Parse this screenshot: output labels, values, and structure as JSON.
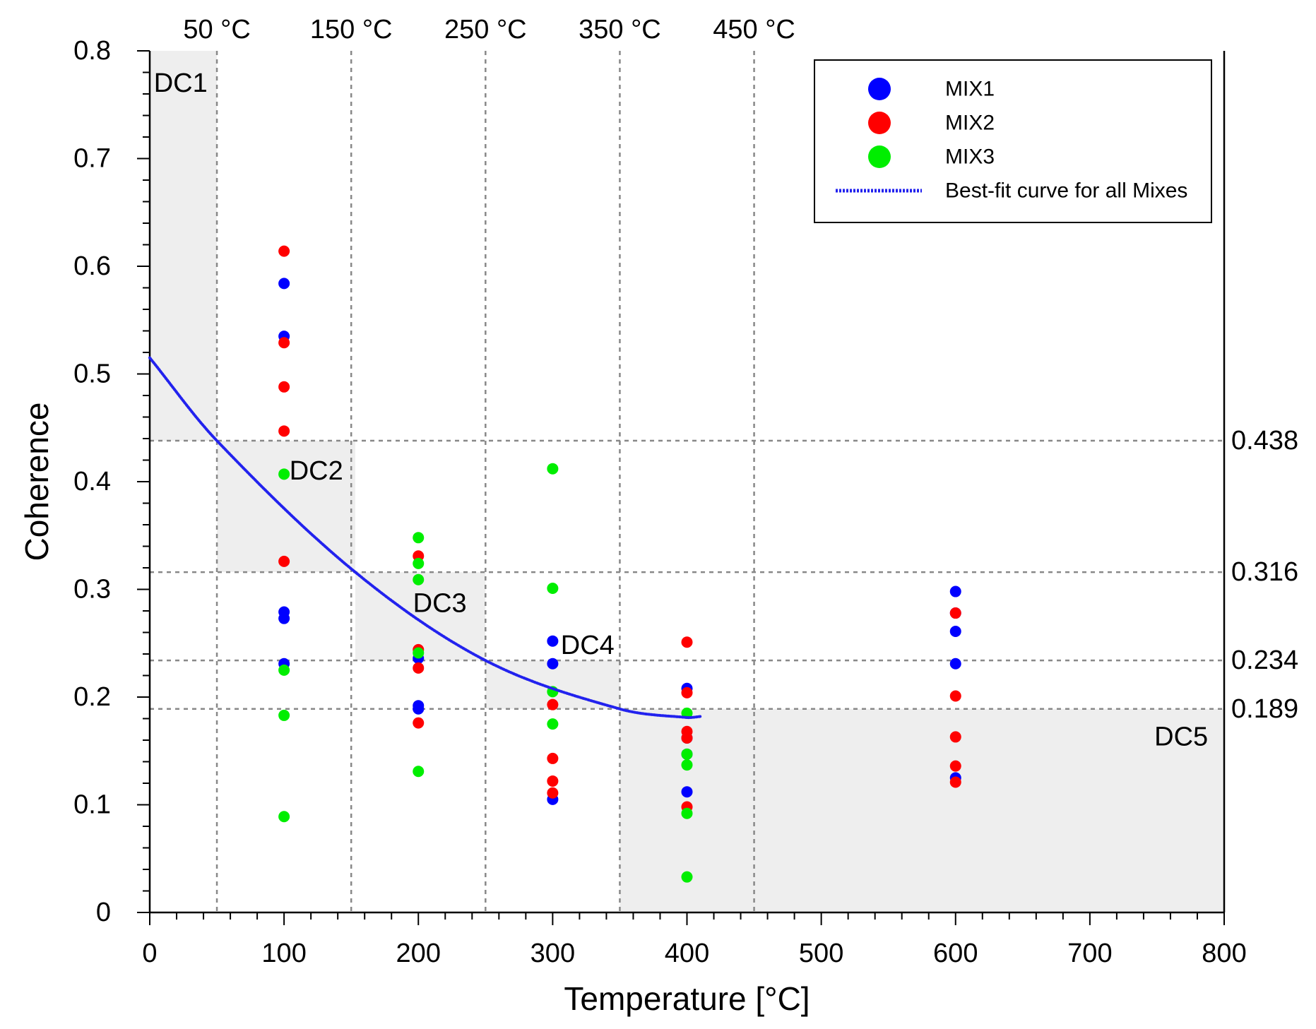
{
  "chart_data": {
    "type": "scatter",
    "xlabel": "Temperature [°C]",
    "ylabel": "Coherence",
    "xlim": [
      0,
      800
    ],
    "ylim": [
      0,
      0.8
    ],
    "x_ticks": [
      0,
      100,
      200,
      300,
      400,
      500,
      600,
      700,
      800
    ],
    "y_ticks": [
      0,
      0.1,
      0.2,
      0.3,
      0.4,
      0.5,
      0.6,
      0.7,
      0.8
    ],
    "x_tick_labels": [
      "0",
      "100",
      "200",
      "300",
      "400",
      "500",
      "600",
      "700",
      "800"
    ],
    "y_tick_labels": [
      "0",
      "0.1",
      "0.2",
      "0.3",
      "0.4",
      "0.5",
      "0.6",
      "0.7",
      "0.8"
    ],
    "top_temperatures": [
      {
        "value": 50,
        "label": "50 °C"
      },
      {
        "value": 150,
        "label": "150 °C"
      },
      {
        "value": 250,
        "label": "250 °C"
      },
      {
        "value": 350,
        "label": "350 °C"
      },
      {
        "value": 450,
        "label": "450 °C"
      }
    ],
    "thresholds": [
      {
        "value": 0.438,
        "label": "0.438"
      },
      {
        "value": 0.316,
        "label": "0.316"
      },
      {
        "value": 0.234,
        "label": "0.234"
      },
      {
        "value": 0.189,
        "label": "0.189"
      }
    ],
    "regions": [
      {
        "name": "DC1",
        "x": [
          0,
          50
        ],
        "y": [
          0.438,
          0.8
        ],
        "label_at": [
          3,
          0.77
        ]
      },
      {
        "name": "DC2",
        "x": [
          50,
          153
        ],
        "y": [
          0.316,
          0.438
        ],
        "label_at": [
          104,
          0.41
        ]
      },
      {
        "name": "DC3",
        "x": [
          153,
          250
        ],
        "y": [
          0.234,
          0.316
        ],
        "label_at": [
          196,
          0.287
        ]
      },
      {
        "name": "DC4",
        "x": [
          250,
          350
        ],
        "y": [
          0.189,
          0.234
        ],
        "label_at": [
          306,
          0.248
        ]
      },
      {
        "name": "DC5",
        "x": [
          350,
          800
        ],
        "y": [
          0,
          0.189
        ],
        "label_at": [
          748,
          0.163
        ]
      }
    ],
    "series": [
      {
        "name": "MIX1",
        "color": "#0000ff",
        "points": [
          [
            100,
            0.584
          ],
          [
            100,
            0.535
          ],
          [
            100,
            0.279
          ],
          [
            100,
            0.273
          ],
          [
            100,
            0.231
          ],
          [
            200,
            0.192
          ],
          [
            200,
            0.189
          ],
          [
            200,
            0.236
          ],
          [
            300,
            0.252
          ],
          [
            300,
            0.231
          ],
          [
            300,
            0.105
          ],
          [
            400,
            0.208
          ],
          [
            400,
            0.162
          ],
          [
            400,
            0.147
          ],
          [
            400,
            0.112
          ],
          [
            600,
            0.298
          ],
          [
            600,
            0.278
          ],
          [
            600,
            0.261
          ],
          [
            600,
            0.231
          ],
          [
            600,
            0.125
          ]
        ]
      },
      {
        "name": "MIX2",
        "color": "#ff0000",
        "points": [
          [
            100,
            0.614
          ],
          [
            100,
            0.529
          ],
          [
            100,
            0.488
          ],
          [
            100,
            0.447
          ],
          [
            100,
            0.326
          ],
          [
            200,
            0.331
          ],
          [
            200,
            0.244
          ],
          [
            200,
            0.227
          ],
          [
            200,
            0.176
          ],
          [
            300,
            0.193
          ],
          [
            300,
            0.143
          ],
          [
            300,
            0.122
          ],
          [
            300,
            0.111
          ],
          [
            400,
            0.251
          ],
          [
            400,
            0.204
          ],
          [
            400,
            0.168
          ],
          [
            400,
            0.162
          ],
          [
            400,
            0.098
          ],
          [
            600,
            0.278
          ],
          [
            600,
            0.201
          ],
          [
            600,
            0.163
          ],
          [
            600,
            0.136
          ],
          [
            600,
            0.121
          ]
        ]
      },
      {
        "name": "MIX3",
        "color": "#00ee00",
        "points": [
          [
            100,
            0.407
          ],
          [
            100,
            0.225
          ],
          [
            100,
            0.183
          ],
          [
            100,
            0.089
          ],
          [
            200,
            0.348
          ],
          [
            200,
            0.324
          ],
          [
            200,
            0.309
          ],
          [
            200,
            0.241
          ],
          [
            200,
            0.131
          ],
          [
            300,
            0.412
          ],
          [
            300,
            0.301
          ],
          [
            300,
            0.205
          ],
          [
            300,
            0.175
          ],
          [
            400,
            0.185
          ],
          [
            400,
            0.147
          ],
          [
            400,
            0.137
          ],
          [
            400,
            0.092
          ],
          [
            400,
            0.033
          ]
        ]
      }
    ],
    "fit_curve": {
      "name": "Best-fit curve for all Mixes",
      "color": "#2222ee",
      "equation_points": [
        [
          0,
          0.515
        ],
        [
          50,
          0.438
        ],
        [
          153,
          0.316
        ],
        [
          250,
          0.234
        ],
        [
          350,
          0.189
        ],
        [
          400,
          0.181
        ],
        [
          410,
          0.182
        ]
      ],
      "x_range": [
        0,
        410
      ]
    },
    "legend": {
      "position": "top-right",
      "entries": [
        {
          "label": "MIX1",
          "color": "#0000ff",
          "kind": "marker"
        },
        {
          "label": "MIX2",
          "color": "#ff0000",
          "kind": "marker"
        },
        {
          "label": "MIX3",
          "color": "#00ee00",
          "kind": "marker"
        },
        {
          "label": "Best-fit curve for all Mixes",
          "color": "#2222ee",
          "kind": "line"
        }
      ]
    }
  }
}
